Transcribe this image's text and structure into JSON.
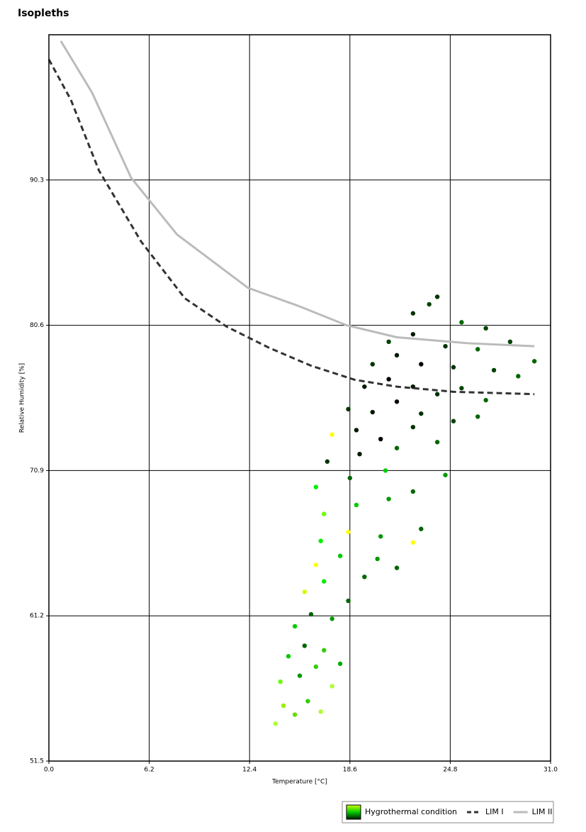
{
  "chart_data": {
    "type": "scatter",
    "title": "Isopleths",
    "x_label": "Temperature [°C]",
    "y_label": "Relative Humidity [%]",
    "xlim": [
      0,
      31
    ],
    "ylim": [
      51.5,
      100
    ],
    "xticks": [
      {
        "value": 0,
        "label": "0.0"
      },
      6.2,
      12.4,
      18.6,
      24.8,
      {
        "value": 31,
        "label": "31.0"
      }
    ],
    "yticks": [
      51.5,
      61.2,
      70.9,
      80.6,
      90.3
    ],
    "grid": true,
    "legend": "bottom-right",
    "series": [
      {
        "name": "Hygrothermal condition",
        "type": "scatter",
        "legend_colors": [
          "#ccff00",
          "#00cc00",
          "#001a00"
        ],
        "x": [
          14.0,
          14.5,
          15.2,
          16.0,
          16.8,
          14.3,
          15.5,
          16.5,
          17.5,
          14.8,
          15.8,
          17.0,
          18.0,
          15.2,
          16.2,
          17.5,
          18.5,
          15.8,
          17.0,
          19.5,
          16.5,
          18.0,
          20.3,
          21.5,
          16.8,
          18.5,
          20.5,
          22.5,
          23.0,
          17.0,
          19.0,
          21.0,
          16.5,
          18.6,
          20.8,
          22.5,
          24.5,
          17.2,
          19.2,
          21.5,
          17.5,
          19.0,
          20.5,
          22.5,
          24.0,
          18.5,
          20.0,
          21.5,
          23.0,
          25.0,
          26.5,
          19.5,
          21.0,
          22.5,
          24.0,
          25.5,
          27.0,
          20.0,
          21.5,
          23.0,
          25.0,
          27.5,
          29.0,
          21.0,
          22.5,
          24.5,
          26.5,
          28.5,
          30.0,
          22.5,
          23.5,
          25.5,
          27.0,
          24.0
        ],
        "values": [
          54.0,
          55.2,
          54.6,
          55.5,
          54.8,
          56.8,
          57.2,
          57.8,
          56.5,
          58.5,
          59.2,
          58.9,
          58.0,
          60.5,
          61.3,
          61.0,
          62.2,
          62.8,
          63.5,
          63.8,
          64.6,
          65.2,
          65.0,
          64.4,
          66.2,
          66.8,
          66.5,
          66.1,
          67.0,
          68.0,
          68.6,
          69.0,
          69.8,
          70.4,
          70.9,
          69.5,
          70.6,
          71.5,
          72.0,
          72.4,
          73.3,
          73.6,
          73.0,
          73.8,
          72.8,
          75.0,
          74.8,
          75.5,
          74.7,
          74.2,
          74.5,
          76.5,
          77.0,
          76.5,
          76.0,
          76.4,
          75.6,
          78.0,
          78.6,
          78.0,
          77.8,
          77.6,
          77.2,
          79.5,
          80.0,
          79.2,
          79.0,
          79.5,
          78.2,
          81.4,
          82.0,
          80.8,
          80.4,
          82.5
        ],
        "colors": [
          "#adff2f",
          "#99ee00",
          "#66dd00",
          "#33cc00",
          "#adff2f",
          "#66ff00",
          "#009900",
          "#33cc00",
          "#adff2f",
          "#00cc00",
          "#006600",
          "#33cc00",
          "#00aa00",
          "#00cc00",
          "#006600",
          "#009900",
          "#006600",
          "#ccff00",
          "#00ee00",
          "#006600",
          "#ffff00",
          "#00cc00",
          "#009900",
          "#006600",
          "#00ee00",
          "#ffff00",
          "#009900",
          "#ffff00",
          "#006600",
          "#66ff00",
          "#00cc00",
          "#009900",
          "#00ee00",
          "#006600",
          "#00cc00",
          "#006600",
          "#009900",
          "#003300",
          "#001a00",
          "#006600",
          "#ffff00",
          "#001a00",
          "#000000",
          "#003300",
          "#006600",
          "#003300",
          "#001a00",
          "#000000",
          "#003300",
          "#004400",
          "#006600",
          "#001a00",
          "#000000",
          "#001a00",
          "#003300",
          "#004400",
          "#006600",
          "#003300",
          "#001a00",
          "#000000",
          "#003300",
          "#004400",
          "#006600",
          "#004400",
          "#001a00",
          "#003300",
          "#006600",
          "#004400",
          "#006600",
          "#003300",
          "#004400",
          "#006600",
          "#004400",
          "#003300"
        ]
      },
      {
        "name": "LIM I",
        "type": "line",
        "color": "#333333",
        "dash": true,
        "x": [
          0,
          1.36,
          3.1,
          5.7,
          8.4,
          11.0,
          13.6,
          16.2,
          18.9,
          21.5,
          25.0,
          30.0
        ],
        "values": [
          98.35,
          95.65,
          90.92,
          86.19,
          82.4,
          80.5,
          79.1,
          77.9,
          76.96,
          76.5,
          76.16,
          76.0
        ]
      },
      {
        "name": "LIM II",
        "type": "line",
        "color": "#bbbbbb",
        "dash": false,
        "x": [
          0.74,
          2.67,
          5.08,
          7.92,
          12.3,
          15.4,
          18.4,
          21.5,
          25.9,
          30.0
        ],
        "values": [
          99.58,
          96.13,
          90.45,
          86.66,
          83.1,
          81.9,
          80.6,
          79.8,
          79.4,
          79.2
        ]
      }
    ]
  }
}
